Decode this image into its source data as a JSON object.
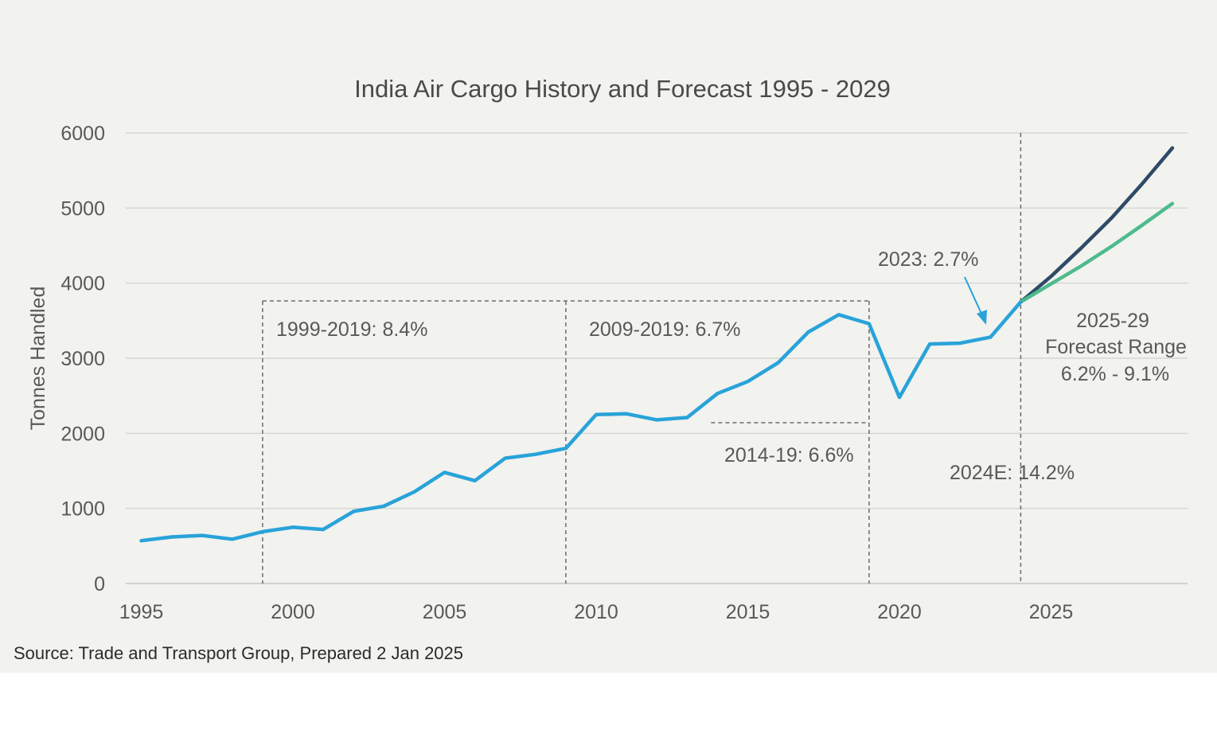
{
  "chart_data": {
    "type": "line",
    "title": "India Air Cargo History and Forecast 1995 - 2029",
    "ylabel": "Tonnes Handled",
    "xlabel": "",
    "xlim": [
      1995,
      2029
    ],
    "ylim": [
      0,
      6000
    ],
    "y_ticks": [
      "0",
      "1000",
      "2000",
      "3000",
      "4000",
      "5000",
      "6000"
    ],
    "x_ticks": [
      "1995",
      "2000",
      "2005",
      "2010",
      "2015",
      "2020",
      "2025"
    ],
    "grid": true,
    "legend": "none",
    "series": [
      {
        "key": "history",
        "color": "#29a3d9",
        "x": [
          1995,
          1996,
          1997,
          1998,
          1999,
          2000,
          2001,
          2002,
          2003,
          2004,
          2005,
          2006,
          2007,
          2008,
          2009,
          2010,
          2011,
          2012,
          2013,
          2014,
          2015,
          2016,
          2017,
          2018,
          2019,
          2020,
          2021,
          2022,
          2023,
          2024
        ],
        "values": [
          570,
          620,
          640,
          590,
          690,
          750,
          720,
          960,
          1030,
          1220,
          1480,
          1370,
          1670,
          1720,
          1800,
          2250,
          2260,
          2180,
          2210,
          2530,
          2690,
          2940,
          3350,
          3580,
          3460,
          2480,
          3190,
          3200,
          3280,
          3750
        ]
      },
      {
        "key": "forecast-high",
        "color": "#2e4a66",
        "x": [
          2024,
          2025,
          2026,
          2027,
          2028,
          2029
        ],
        "values": [
          3750,
          4090,
          4470,
          4870,
          5320,
          5800
        ]
      },
      {
        "key": "forecast-low",
        "color": "#4dbb8c",
        "x": [
          2024,
          2025,
          2026,
          2027,
          2028,
          2029
        ],
        "values": [
          3750,
          3990,
          4230,
          4490,
          4770,
          5060
        ]
      }
    ],
    "annotations": [
      {
        "key": "ann-1999-2019",
        "text": "1999-2019: 8.4%"
      },
      {
        "key": "ann-2009-2019",
        "text": "2009-2019: 6.7%"
      },
      {
        "key": "ann-2014-19",
        "text": "2014-19: 6.6%"
      },
      {
        "key": "ann-2023",
        "text": "2023: 2.7%"
      },
      {
        "key": "ann-2024e",
        "text": "2024E: 14.2%"
      },
      {
        "key": "ann-forecast",
        "lines": [
          "2025-29",
          "Forecast Range",
          "6.2% - 9.1%"
        ]
      }
    ],
    "source": "Source: Trade and Transport Group, Prepared 2 Jan 2025"
  }
}
